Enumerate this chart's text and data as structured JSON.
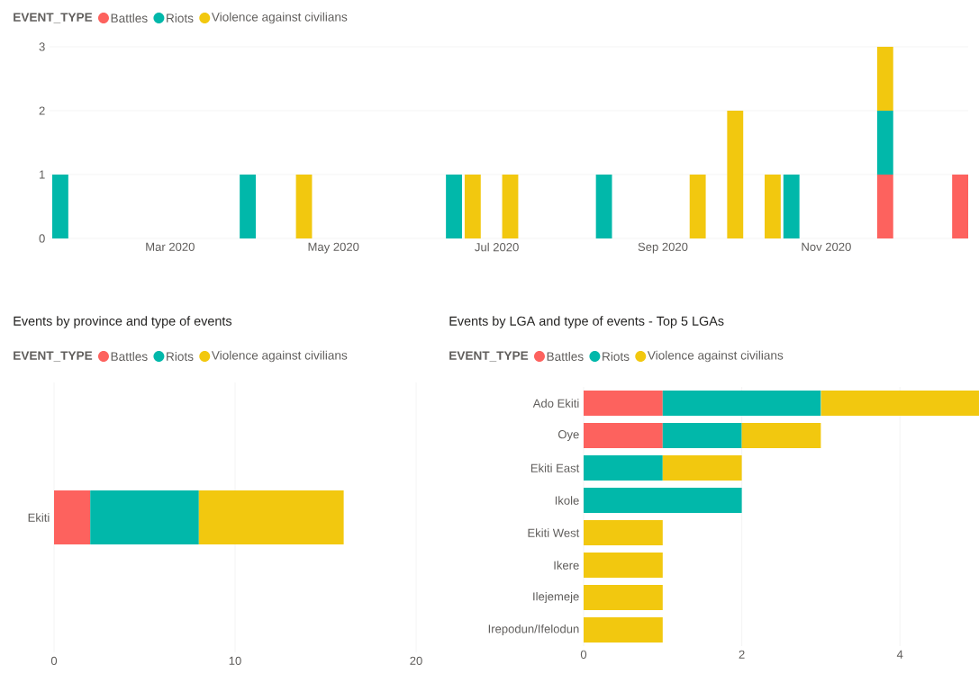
{
  "chart_data": [
    {
      "type": "bar",
      "stacked": true,
      "legend_title": "EVENT_TYPE",
      "legend": "top left",
      "grid": "y",
      "x": [
        "2020-01-20",
        "2020-03-30",
        "2020-04-20",
        "2020-06-15",
        "2020-06-22",
        "2020-07-06",
        "2020-08-10",
        "2020-09-14",
        "2020-09-28",
        "2020-10-12",
        "2020-10-19",
        "2020-11-23",
        "2020-12-21"
      ],
      "series": [
        {
          "name": "Battles",
          "color": "#fd625e",
          "values": [
            null,
            null,
            null,
            null,
            null,
            null,
            null,
            null,
            null,
            null,
            null,
            1,
            1
          ]
        },
        {
          "name": "Riots",
          "color": "#01b8aa",
          "values": [
            1,
            1,
            null,
            1,
            null,
            null,
            1,
            null,
            null,
            null,
            1,
            1,
            null
          ]
        },
        {
          "name": "Violence against civilians",
          "color": "#f2c80f",
          "values": [
            null,
            null,
            1,
            null,
            1,
            1,
            null,
            1,
            2,
            1,
            null,
            1,
            null
          ]
        }
      ],
      "xlim": [
        "2020-01-16",
        "2020-12-24"
      ],
      "xticks": [
        {
          "value": "2020-03-01",
          "label": "Mar 2020"
        },
        {
          "value": "2020-05-01",
          "label": "May 2020"
        },
        {
          "value": "2020-07-01",
          "label": "Jul 2020"
        },
        {
          "value": "2020-09-01",
          "label": "Sep 2020"
        },
        {
          "value": "2020-11-01",
          "label": "Nov 2020"
        }
      ],
      "ylim": [
        0,
        3
      ],
      "yticks": [
        0,
        1,
        2,
        3
      ]
    },
    {
      "type": "bar",
      "stacked": true,
      "orientation": "horizontal",
      "title": "Events by province and type of events",
      "legend_title": "EVENT_TYPE",
      "legend": "top left",
      "grid": "x",
      "categories": [
        "Ekiti"
      ],
      "series": [
        {
          "name": "Battles",
          "color": "#fd625e",
          "values": [
            2
          ]
        },
        {
          "name": "Riots",
          "color": "#01b8aa",
          "values": [
            6
          ]
        },
        {
          "name": "Violence against civilians",
          "color": "#f2c80f",
          "values": [
            8
          ]
        }
      ],
      "xlim": [
        0,
        20
      ],
      "xticks": [
        0,
        10,
        20
      ]
    },
    {
      "type": "bar",
      "stacked": true,
      "orientation": "horizontal",
      "title": "Events by LGA and type of events - Top 5 LGAs",
      "legend_title": "EVENT_TYPE",
      "legend": "top left",
      "grid": "x",
      "categories": [
        "Ado Ekiti",
        "Oye",
        "Ekiti East",
        "Ikole",
        "Ekiti West",
        "Ikere",
        "Ilejemeje",
        "Irepodun/Ifelodun"
      ],
      "series": [
        {
          "name": "Battles",
          "color": "#fd625e",
          "values": [
            1,
            1,
            null,
            null,
            null,
            null,
            null,
            null
          ]
        },
        {
          "name": "Riots",
          "color": "#01b8aa",
          "values": [
            2,
            1,
            1,
            2,
            null,
            null,
            null,
            null
          ]
        },
        {
          "name": "Violence against civilians",
          "color": "#f2c80f",
          "values": [
            2,
            1,
            1,
            null,
            1,
            1,
            1,
            1
          ]
        }
      ],
      "xlim": [
        0,
        5
      ],
      "xticks": [
        0,
        2,
        4
      ]
    }
  ]
}
